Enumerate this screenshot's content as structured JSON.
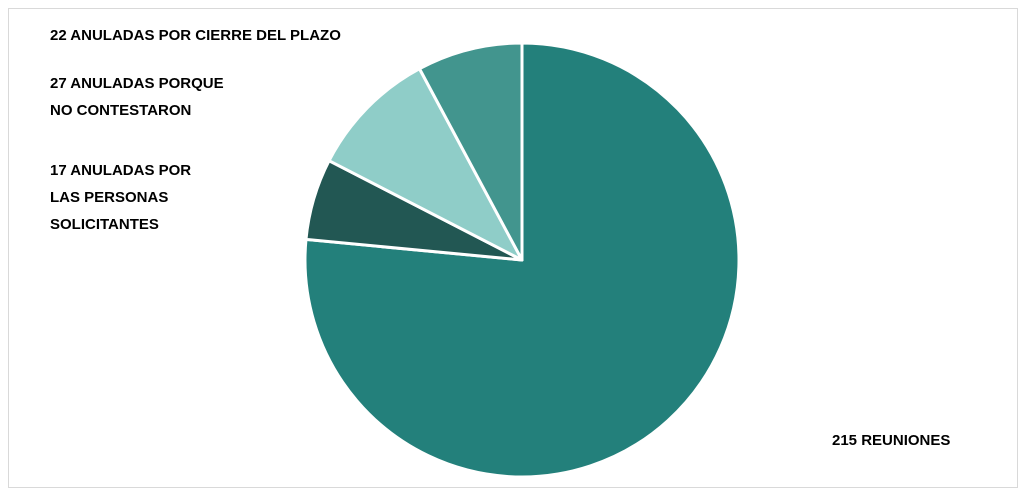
{
  "chart_data": {
    "type": "pie",
    "categories": [
      "215 REUNIONES",
      "17 ANULADAS POR LAS PERSONAS SOLICITANTES",
      "27 ANULADAS PORQUE NO CONTESTARON",
      "22 ANULADAS POR CIERRE DEL PLAZO"
    ],
    "values": [
      215,
      17,
      27,
      22
    ],
    "colors": [
      "#23807b",
      "#225753",
      "#8fcdc8",
      "#42958e"
    ]
  }
}
